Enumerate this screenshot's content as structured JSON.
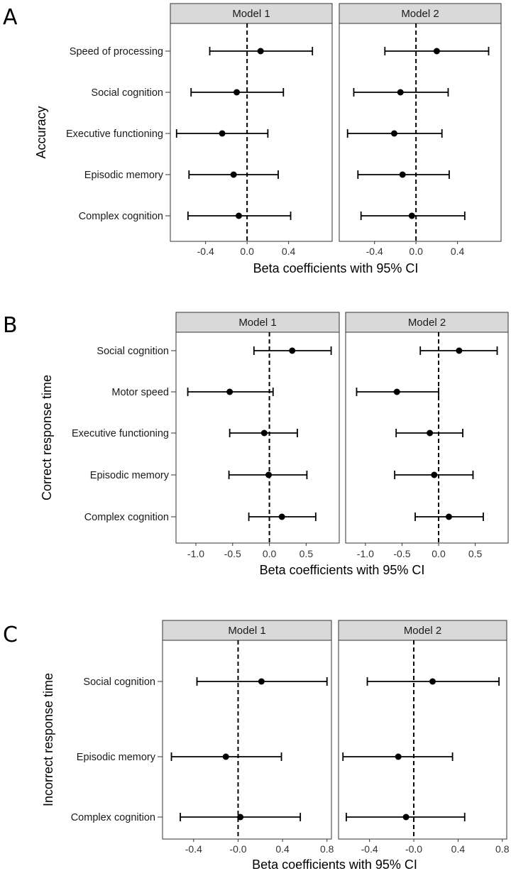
{
  "chart_data": [
    {
      "panel": "A",
      "type": "forest",
      "ylabel": "Accuracy",
      "xlabel": "Beta coefficients with 95% CI",
      "xlim": [
        -0.74,
        0.82
      ],
      "xticks": [
        -0.4,
        0.0,
        0.4
      ],
      "xtick_labels": [
        "-0.4",
        "0.0",
        "0.4"
      ],
      "categories": [
        "Speed of processing",
        "Social cognition",
        "Executive functioning",
        "Episodic memory",
        "Complex cognition"
      ],
      "facets": [
        {
          "title": "Model 1",
          "estimates": [
            0.13,
            -0.1,
            -0.24,
            -0.13,
            -0.08
          ],
          "lower": [
            -0.36,
            -0.54,
            -0.68,
            -0.56,
            -0.57
          ],
          "upper": [
            0.63,
            0.35,
            0.2,
            0.3,
            0.42
          ]
        },
        {
          "title": "Model 2",
          "estimates": [
            0.2,
            -0.15,
            -0.21,
            -0.13,
            -0.04
          ],
          "lower": [
            -0.3,
            -0.6,
            -0.66,
            -0.56,
            -0.53
          ],
          "upper": [
            0.7,
            0.31,
            0.25,
            0.32,
            0.47
          ]
        }
      ]
    },
    {
      "panel": "B",
      "type": "forest",
      "ylabel": "Correct response time",
      "xlabel": "Beta coefficients with 95% CI",
      "xlim": [
        -1.27,
        0.95
      ],
      "xticks": [
        -1.0,
        -0.5,
        0.0,
        0.5
      ],
      "xtick_labels": [
        "-1.0",
        "-0.5",
        "0.0",
        "0.5"
      ],
      "categories": [
        "Social cognition",
        "Motor speed",
        "Executive functioning",
        "Episodic memory",
        "Complex cognition"
      ],
      "facets": [
        {
          "title": "Model 1",
          "estimates": [
            0.31,
            -0.54,
            -0.07,
            -0.01,
            0.17
          ],
          "lower": [
            -0.21,
            -1.11,
            -0.54,
            -0.55,
            -0.28
          ],
          "upper": [
            0.84,
            0.05,
            0.38,
            0.51,
            0.63
          ]
        },
        {
          "title": "Model 2",
          "estimates": [
            0.28,
            -0.57,
            -0.12,
            -0.06,
            0.14
          ],
          "lower": [
            -0.25,
            -1.12,
            -0.58,
            -0.6,
            -0.32
          ],
          "upper": [
            0.8,
            0.0,
            0.33,
            0.47,
            0.61
          ]
        }
      ]
    },
    {
      "panel": "C",
      "type": "forest",
      "ylabel": "Incorrect response time",
      "xlabel": "Beta coefficients with 95% CI",
      "xlim": [
        -0.68,
        0.84
      ],
      "xticks": [
        -0.4,
        0.0,
        0.4,
        0.8
      ],
      "xtick_labels": [
        "-0.4",
        "-0.0",
        "0.4",
        "0.8"
      ],
      "categories": [
        "Social cognition",
        "Episodic memory",
        "Complex cognition"
      ],
      "facets": [
        {
          "title": "Model 1",
          "estimates": [
            0.21,
            -0.11,
            0.02
          ],
          "lower": [
            -0.37,
            -0.6,
            -0.52
          ],
          "upper": [
            0.8,
            0.39,
            0.56
          ]
        },
        {
          "title": "Model 2",
          "estimates": [
            0.17,
            -0.14,
            -0.07
          ],
          "lower": [
            -0.42,
            -0.64,
            -0.61
          ],
          "upper": [
            0.77,
            0.35,
            0.46
          ]
        }
      ]
    }
  ]
}
